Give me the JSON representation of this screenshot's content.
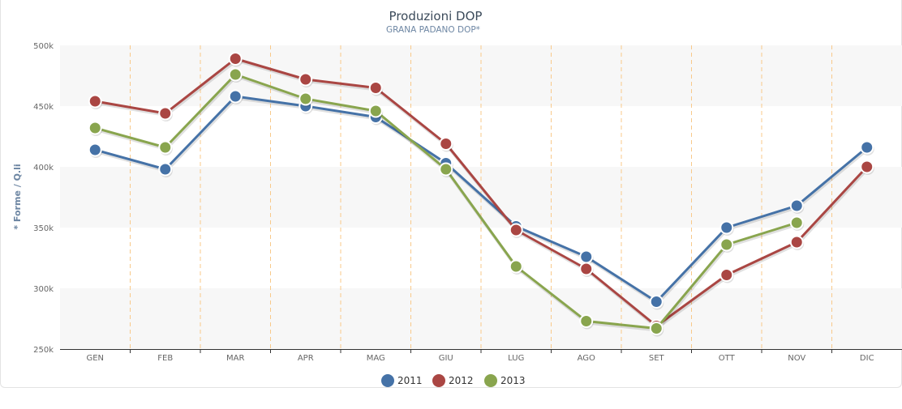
{
  "chart_data": {
    "type": "line",
    "title": "Produzioni DOP",
    "subtitle": "GRANA PADANO DOP*",
    "xlabel": "",
    "ylabel": "* Forme / Q.li",
    "categories": [
      "GEN",
      "FEB",
      "MAR",
      "APR",
      "MAG",
      "GIU",
      "LUG",
      "AGO",
      "SET",
      "OTT",
      "NOV",
      "DIC"
    ],
    "ylim": [
      250000,
      500000
    ],
    "yticks": [
      250000,
      300000,
      350000,
      400000,
      450000,
      500000
    ],
    "ytick_labels": [
      "250k",
      "300k",
      "350k",
      "400k",
      "450k",
      "500k"
    ],
    "grid": "alternating horizontal bands",
    "legend_position": "bottom-center",
    "series": [
      {
        "name": "2011",
        "color": "#4572a7",
        "values": [
          414000,
          398000,
          458000,
          450000,
          441000,
          403000,
          351000,
          326000,
          289000,
          350000,
          368000,
          416000
        ]
      },
      {
        "name": "2012",
        "color": "#aa4643",
        "values": [
          454000,
          444000,
          489000,
          472000,
          465000,
          419000,
          348000,
          316000,
          269000,
          311000,
          338000,
          400000
        ]
      },
      {
        "name": "2013",
        "color": "#89a54e",
        "values": [
          432000,
          416000,
          476000,
          456000,
          446000,
          398000,
          318000,
          273000,
          267000,
          336000,
          354000,
          null
        ]
      }
    ]
  }
}
